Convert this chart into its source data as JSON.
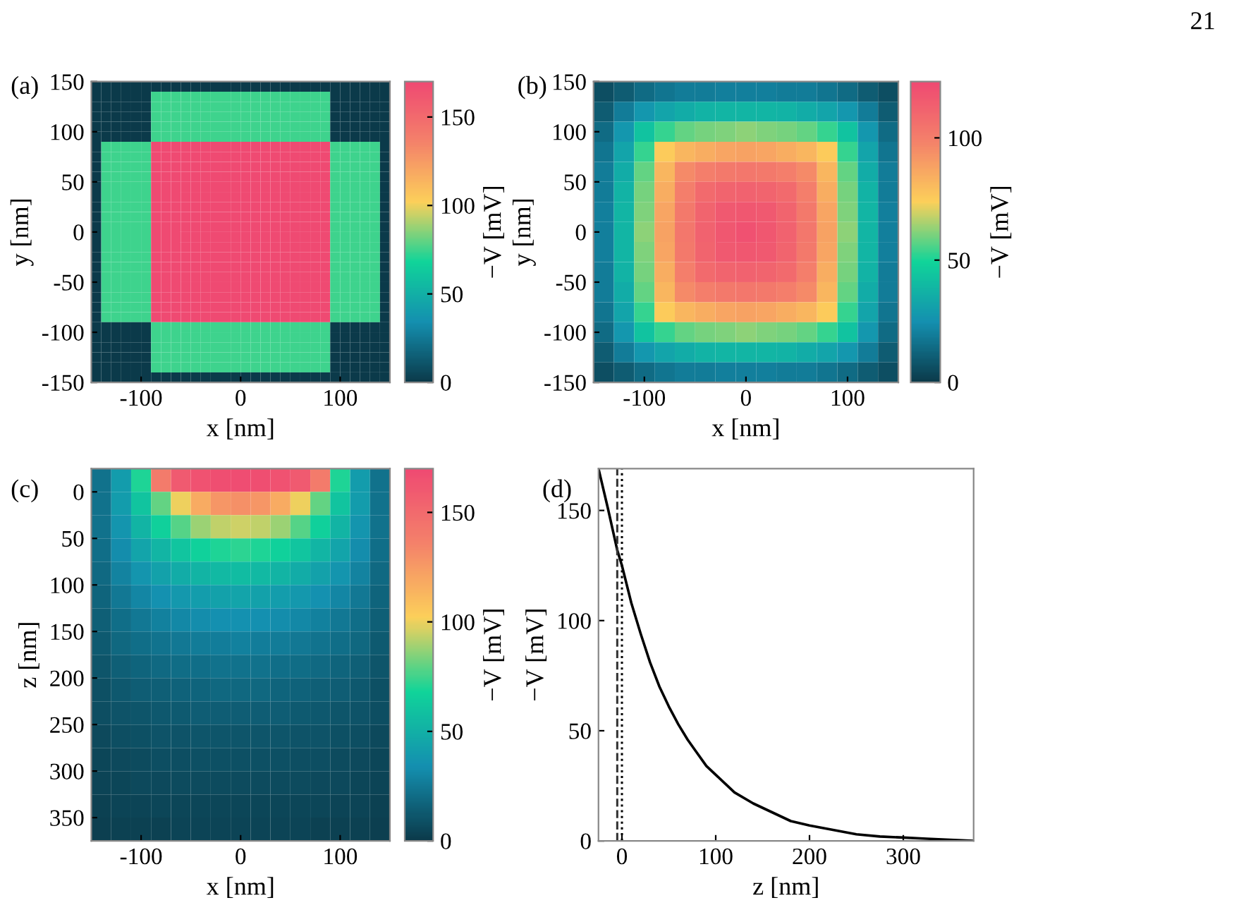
{
  "chart_data": [
    {
      "type": "heatmap",
      "title": "(a)",
      "xlabel": "x [nm]",
      "ylabel": "y [nm]",
      "clabel": "−V [mV]",
      "annotations": [
        "21"
      ],
      "colors": [
        "#0b3a4a",
        "#1490b0",
        "#10d49a",
        "#fcd05a",
        "#f4826a",
        "#ef4a72"
      ],
      "x": [
        -145,
        -135,
        -125,
        -115,
        -105,
        -95,
        -85,
        -75,
        -65,
        -55,
        -45,
        -35,
        -25,
        -15,
        -5,
        5,
        15,
        25,
        35,
        45,
        55,
        65,
        75,
        85,
        95,
        105,
        115,
        125,
        135,
        145
      ],
      "y": [
        145,
        135,
        125,
        115,
        105,
        95,
        85,
        75,
        65,
        55,
        45,
        35,
        25,
        15,
        5,
        -5,
        -15,
        -25,
        -35,
        -45,
        -55,
        -65,
        -75,
        -85,
        -95,
        -105,
        -115,
        -125,
        -135,
        -145
      ],
      "xlim": [
        -150,
        150
      ],
      "ylim": [
        -150,
        150
      ],
      "xticks": [
        -100,
        0,
        100
      ],
      "yticks": [
        -150,
        -100,
        -50,
        0,
        50,
        100,
        150
      ],
      "clim": [
        0,
        170
      ],
      "cticks": [
        0,
        50,
        100,
        150
      ],
      "cells": [
        [
          0,
          0,
          0,
          0,
          0,
          0,
          0,
          0,
          0,
          0,
          0,
          0,
          0,
          0,
          0,
          0,
          0,
          0,
          0,
          0,
          0,
          0,
          0,
          0,
          0,
          0,
          0,
          0,
          0,
          0
        ],
        [
          0,
          0,
          0,
          0,
          0,
          0,
          75,
          75,
          75,
          75,
          75,
          75,
          75,
          75,
          75,
          75,
          75,
          75,
          75,
          75,
          75,
          75,
          75,
          75,
          0,
          0,
          0,
          0,
          0,
          0
        ],
        [
          0,
          0,
          0,
          0,
          0,
          0,
          75,
          75,
          75,
          75,
          75,
          75,
          75,
          75,
          75,
          75,
          75,
          75,
          75,
          75,
          75,
          75,
          75,
          75,
          0,
          0,
          0,
          0,
          0,
          0
        ],
        [
          0,
          0,
          0,
          0,
          0,
          0,
          75,
          75,
          75,
          75,
          75,
          75,
          75,
          75,
          75,
          75,
          75,
          75,
          75,
          75,
          75,
          75,
          75,
          75,
          0,
          0,
          0,
          0,
          0,
          0
        ],
        [
          0,
          0,
          0,
          0,
          0,
          0,
          75,
          75,
          75,
          75,
          75,
          75,
          75,
          75,
          75,
          75,
          75,
          75,
          75,
          75,
          75,
          75,
          75,
          75,
          0,
          0,
          0,
          0,
          0,
          0
        ],
        [
          0,
          0,
          0,
          0,
          0,
          0,
          75,
          75,
          75,
          75,
          75,
          75,
          75,
          75,
          75,
          75,
          75,
          75,
          75,
          75,
          75,
          75,
          75,
          75,
          0,
          0,
          0,
          0,
          0,
          0
        ],
        [
          0,
          75,
          75,
          75,
          75,
          75,
          170,
          170,
          170,
          170,
          170,
          170,
          170,
          170,
          170,
          170,
          170,
          170,
          170,
          170,
          170,
          170,
          170,
          170,
          75,
          75,
          75,
          75,
          75,
          0
        ],
        [
          0,
          75,
          75,
          75,
          75,
          75,
          170,
          170,
          170,
          170,
          170,
          170,
          170,
          170,
          170,
          170,
          170,
          170,
          170,
          170,
          170,
          170,
          170,
          170,
          75,
          75,
          75,
          75,
          75,
          0
        ],
        [
          0,
          75,
          75,
          75,
          75,
          75,
          170,
          170,
          170,
          170,
          170,
          170,
          170,
          170,
          170,
          170,
          170,
          170,
          170,
          170,
          170,
          170,
          170,
          170,
          75,
          75,
          75,
          75,
          75,
          0
        ],
        [
          0,
          75,
          75,
          75,
          75,
          75,
          170,
          170,
          170,
          170,
          170,
          170,
          170,
          170,
          170,
          170,
          170,
          170,
          170,
          170,
          170,
          170,
          170,
          170,
          75,
          75,
          75,
          75,
          75,
          0
        ],
        [
          0,
          75,
          75,
          75,
          75,
          75,
          170,
          170,
          170,
          170,
          170,
          170,
          170,
          170,
          170,
          170,
          170,
          170,
          170,
          170,
          170,
          170,
          170,
          170,
          75,
          75,
          75,
          75,
          75,
          0
        ],
        [
          0,
          75,
          75,
          75,
          75,
          75,
          170,
          170,
          170,
          170,
          170,
          170,
          170,
          170,
          170,
          170,
          170,
          170,
          170,
          170,
          170,
          170,
          170,
          170,
          75,
          75,
          75,
          75,
          75,
          0
        ],
        [
          0,
          75,
          75,
          75,
          75,
          75,
          170,
          170,
          170,
          170,
          170,
          170,
          170,
          170,
          170,
          170,
          170,
          170,
          170,
          170,
          170,
          170,
          170,
          170,
          75,
          75,
          75,
          75,
          75,
          0
        ],
        [
          0,
          75,
          75,
          75,
          75,
          75,
          170,
          170,
          170,
          170,
          170,
          170,
          170,
          170,
          170,
          170,
          170,
          170,
          170,
          170,
          170,
          170,
          170,
          170,
          75,
          75,
          75,
          75,
          75,
          0
        ],
        [
          0,
          75,
          75,
          75,
          75,
          75,
          170,
          170,
          170,
          170,
          170,
          170,
          170,
          170,
          170,
          170,
          170,
          170,
          170,
          170,
          170,
          170,
          170,
          170,
          75,
          75,
          75,
          75,
          75,
          0
        ],
        [
          0,
          75,
          75,
          75,
          75,
          75,
          170,
          170,
          170,
          170,
          170,
          170,
          170,
          170,
          170,
          170,
          170,
          170,
          170,
          170,
          170,
          170,
          170,
          170,
          75,
          75,
          75,
          75,
          75,
          0
        ],
        [
          0,
          75,
          75,
          75,
          75,
          75,
          170,
          170,
          170,
          170,
          170,
          170,
          170,
          170,
          170,
          170,
          170,
          170,
          170,
          170,
          170,
          170,
          170,
          170,
          75,
          75,
          75,
          75,
          75,
          0
        ],
        [
          0,
          75,
          75,
          75,
          75,
          75,
          170,
          170,
          170,
          170,
          170,
          170,
          170,
          170,
          170,
          170,
          170,
          170,
          170,
          170,
          170,
          170,
          170,
          170,
          75,
          75,
          75,
          75,
          75,
          0
        ],
        [
          0,
          75,
          75,
          75,
          75,
          75,
          170,
          170,
          170,
          170,
          170,
          170,
          170,
          170,
          170,
          170,
          170,
          170,
          170,
          170,
          170,
          170,
          170,
          170,
          75,
          75,
          75,
          75,
          75,
          0
        ],
        [
          0,
          75,
          75,
          75,
          75,
          75,
          170,
          170,
          170,
          170,
          170,
          170,
          170,
          170,
          170,
          170,
          170,
          170,
          170,
          170,
          170,
          170,
          170,
          170,
          75,
          75,
          75,
          75,
          75,
          0
        ],
        [
          0,
          75,
          75,
          75,
          75,
          75,
          170,
          170,
          170,
          170,
          170,
          170,
          170,
          170,
          170,
          170,
          170,
          170,
          170,
          170,
          170,
          170,
          170,
          170,
          75,
          75,
          75,
          75,
          75,
          0
        ],
        [
          0,
          75,
          75,
          75,
          75,
          75,
          170,
          170,
          170,
          170,
          170,
          170,
          170,
          170,
          170,
          170,
          170,
          170,
          170,
          170,
          170,
          170,
          170,
          170,
          75,
          75,
          75,
          75,
          75,
          0
        ],
        [
          0,
          75,
          75,
          75,
          75,
          75,
          170,
          170,
          170,
          170,
          170,
          170,
          170,
          170,
          170,
          170,
          170,
          170,
          170,
          170,
          170,
          170,
          170,
          170,
          75,
          75,
          75,
          75,
          75,
          0
        ],
        [
          0,
          75,
          75,
          75,
          75,
          75,
          170,
          170,
          170,
          170,
          170,
          170,
          170,
          170,
          170,
          170,
          170,
          170,
          170,
          170,
          170,
          170,
          170,
          170,
          75,
          75,
          75,
          75,
          75,
          0
        ],
        [
          0,
          0,
          0,
          0,
          0,
          0,
          75,
          75,
          75,
          75,
          75,
          75,
          75,
          75,
          75,
          75,
          75,
          75,
          75,
          75,
          75,
          75,
          75,
          75,
          0,
          0,
          0,
          0,
          0,
          0
        ],
        [
          0,
          0,
          0,
          0,
          0,
          0,
          75,
          75,
          75,
          75,
          75,
          75,
          75,
          75,
          75,
          75,
          75,
          75,
          75,
          75,
          75,
          75,
          75,
          75,
          0,
          0,
          0,
          0,
          0,
          0
        ],
        [
          0,
          0,
          0,
          0,
          0,
          0,
          75,
          75,
          75,
          75,
          75,
          75,
          75,
          75,
          75,
          75,
          75,
          75,
          75,
          75,
          75,
          75,
          75,
          75,
          0,
          0,
          0,
          0,
          0,
          0
        ],
        [
          0,
          0,
          0,
          0,
          0,
          0,
          75,
          75,
          75,
          75,
          75,
          75,
          75,
          75,
          75,
          75,
          75,
          75,
          75,
          75,
          75,
          75,
          75,
          75,
          0,
          0,
          0,
          0,
          0,
          0
        ],
        [
          0,
          0,
          0,
          0,
          0,
          0,
          75,
          75,
          75,
          75,
          75,
          75,
          75,
          75,
          75,
          75,
          75,
          75,
          75,
          75,
          75,
          75,
          75,
          75,
          0,
          0,
          0,
          0,
          0,
          0
        ],
        [
          0,
          0,
          0,
          0,
          0,
          0,
          0,
          0,
          0,
          0,
          0,
          0,
          0,
          0,
          0,
          0,
          0,
          0,
          0,
          0,
          0,
          0,
          0,
          0,
          0,
          0,
          0,
          0,
          0,
          0
        ]
      ]
    },
    {
      "type": "heatmap",
      "title": "(b)",
      "xlabel": "x [nm]",
      "ylabel": "y [nm]",
      "clabel": "−V [mV]",
      "colors": [
        "#0b3a4a",
        "#1490b0",
        "#10d49a",
        "#fcd05a",
        "#f4826a",
        "#ef4a72"
      ],
      "x": [
        -140,
        -120,
        -100,
        -80,
        -60,
        -40,
        -20,
        0,
        20,
        40,
        60,
        80,
        100,
        120,
        140
      ],
      "y": [
        140,
        120,
        100,
        80,
        60,
        40,
        20,
        0,
        -20,
        -40,
        -60,
        -80,
        -100,
        -120,
        -140
      ],
      "xlim": [
        -150,
        150
      ],
      "ylim": [
        -150,
        150
      ],
      "xticks": [
        -100,
        0,
        100
      ],
      "yticks": [
        -150,
        -100,
        -50,
        0,
        50,
        100,
        150
      ],
      "clim": [
        0,
        123
      ],
      "cticks": [
        0,
        50,
        100
      ],
      "cells": [
        [
          6,
          10,
          14,
          17,
          19,
          19,
          20,
          20,
          20,
          19,
          19,
          17,
          14,
          10,
          6
        ],
        [
          10,
          19,
          27,
          32,
          35,
          37,
          38,
          38,
          38,
          37,
          35,
          32,
          27,
          19,
          10
        ],
        [
          14,
          27,
          43,
          53,
          58,
          60,
          61,
          62,
          61,
          60,
          58,
          53,
          43,
          27,
          14
        ],
        [
          17,
          32,
          53,
          75,
          82,
          85,
          87,
          88,
          87,
          85,
          82,
          75,
          53,
          32,
          17
        ],
        [
          19,
          35,
          58,
          82,
          96,
          100,
          102,
          103,
          102,
          100,
          96,
          82,
          58,
          35,
          19
        ],
        [
          19,
          37,
          60,
          85,
          100,
          109,
          111,
          112,
          111,
          109,
          100,
          85,
          60,
          37,
          19
        ],
        [
          20,
          38,
          61,
          87,
          102,
          111,
          116,
          117,
          116,
          111,
          102,
          87,
          61,
          38,
          20
        ],
        [
          20,
          38,
          62,
          88,
          103,
          112,
          117,
          120,
          117,
          112,
          103,
          88,
          62,
          38,
          20
        ],
        [
          20,
          38,
          61,
          87,
          102,
          111,
          116,
          117,
          116,
          111,
          102,
          87,
          61,
          38,
          20
        ],
        [
          19,
          37,
          60,
          85,
          100,
          109,
          111,
          112,
          111,
          109,
          100,
          85,
          60,
          37,
          19
        ],
        [
          19,
          35,
          58,
          82,
          96,
          100,
          102,
          103,
          102,
          100,
          96,
          82,
          58,
          35,
          19
        ],
        [
          17,
          32,
          53,
          75,
          82,
          85,
          87,
          88,
          87,
          85,
          82,
          75,
          53,
          32,
          17
        ],
        [
          14,
          27,
          43,
          53,
          58,
          60,
          61,
          62,
          61,
          60,
          58,
          53,
          43,
          27,
          14
        ],
        [
          10,
          19,
          27,
          32,
          35,
          37,
          38,
          38,
          38,
          37,
          35,
          32,
          27,
          19,
          10
        ],
        [
          6,
          10,
          14,
          17,
          19,
          19,
          20,
          20,
          20,
          19,
          19,
          17,
          14,
          10,
          6
        ]
      ]
    },
    {
      "type": "heatmap",
      "title": "(c)",
      "xlabel": "x [nm]",
      "ylabel": "z [nm]",
      "clabel": "−V [mV]",
      "colors": [
        "#0b3a4a",
        "#1490b0",
        "#10d49a",
        "#fcd05a",
        "#f4826a",
        "#ef4a72"
      ],
      "x": [
        -140,
        -120,
        -100,
        -80,
        -60,
        -40,
        -20,
        0,
        20,
        40,
        60,
        80,
        100,
        120,
        140
      ],
      "y": [
        -12.5,
        12.5,
        37.5,
        62.5,
        87.5,
        112.5,
        137.5,
        162.5,
        187.5,
        212.5,
        237.5,
        262.5,
        287.5,
        312.5,
        337.5,
        362.5
      ],
      "xlim": [
        -150,
        150
      ],
      "ylim": [
        375,
        -25
      ],
      "xticks": [
        -100,
        0,
        100
      ],
      "yticks": [
        0,
        50,
        100,
        150,
        200,
        250,
        300,
        350
      ],
      "clim": [
        0,
        170
      ],
      "cticks": [
        0,
        50,
        100,
        150
      ],
      "cells": [
        [
          22,
          40,
          70,
          140,
          160,
          165,
          167,
          168,
          167,
          165,
          160,
          140,
          70,
          40,
          22
        ],
        [
          22,
          40,
          60,
          80,
          100,
          118,
          127,
          130,
          127,
          118,
          100,
          80,
          60,
          40,
          22
        ],
        [
          22,
          37,
          52,
          66,
          78,
          88,
          93,
          95,
          93,
          88,
          78,
          66,
          52,
          37,
          22
        ],
        [
          21,
          33,
          44,
          53,
          61,
          67,
          70,
          72,
          70,
          67,
          61,
          53,
          44,
          33,
          21
        ],
        [
          19,
          29,
          37,
          43,
          48,
          52,
          55,
          56,
          55,
          52,
          48,
          43,
          37,
          29,
          19
        ],
        [
          17,
          25,
          30,
          35,
          38,
          41,
          43,
          44,
          43,
          41,
          38,
          35,
          30,
          25,
          17
        ],
        [
          15,
          21,
          25,
          28,
          31,
          33,
          34,
          35,
          34,
          33,
          31,
          28,
          25,
          21,
          15
        ],
        [
          13,
          18,
          21,
          23,
          25,
          26,
          27,
          28,
          27,
          26,
          25,
          23,
          21,
          18,
          13
        ],
        [
          11,
          15,
          17,
          19,
          20,
          21,
          22,
          22,
          22,
          21,
          20,
          19,
          17,
          15,
          11
        ],
        [
          9,
          12,
          14,
          15,
          16,
          17,
          18,
          18,
          18,
          17,
          16,
          15,
          14,
          12,
          9
        ],
        [
          8,
          10,
          11,
          12,
          13,
          14,
          14,
          14,
          14,
          14,
          13,
          12,
          11,
          10,
          8
        ],
        [
          6,
          8,
          9,
          10,
          10,
          11,
          11,
          11,
          11,
          11,
          10,
          10,
          9,
          8,
          6
        ],
        [
          5,
          6,
          7,
          8,
          8,
          9,
          9,
          9,
          9,
          9,
          8,
          8,
          7,
          6,
          5
        ],
        [
          4,
          5,
          6,
          6,
          7,
          7,
          7,
          7,
          7,
          7,
          7,
          6,
          6,
          5,
          4
        ],
        [
          3,
          4,
          4,
          5,
          5,
          5,
          5,
          5,
          5,
          5,
          5,
          5,
          4,
          4,
          3
        ],
        [
          2,
          3,
          3,
          3,
          4,
          4,
          4,
          4,
          4,
          4,
          4,
          3,
          3,
          3,
          2
        ]
      ]
    },
    {
      "type": "line",
      "title": "(d)",
      "xlabel": "z [nm]",
      "ylabel": "−V [mV]",
      "xlim": [
        -25,
        375
      ],
      "ylim": [
        0,
        169
      ],
      "xticks": [
        0,
        100,
        200,
        300
      ],
      "yticks": [
        0,
        50,
        100,
        150
      ],
      "grid": false,
      "x": [
        -25,
        -15,
        -5,
        0,
        10,
        20,
        30,
        40,
        50,
        60,
        70,
        80,
        90,
        100,
        120,
        140,
        160,
        180,
        200,
        225,
        250,
        275,
        300,
        325,
        350,
        375
      ],
      "series": [
        {
          "color": "#000000",
          "line_style": "solid",
          "values": [
            169,
            151,
            132,
            125,
            108,
            94,
            81,
            70,
            61,
            53,
            46,
            40,
            34,
            30,
            22,
            17,
            13,
            9,
            7,
            5,
            3,
            2,
            1.5,
            1,
            0.5,
            0
          ]
        }
      ],
      "ref_lines": [
        {
          "axis": "x",
          "value": -5,
          "color": "#333333",
          "line_style": "dashed"
        },
        {
          "axis": "x",
          "value": 0,
          "color": "#000000",
          "line_style": "dotted"
        }
      ]
    }
  ]
}
